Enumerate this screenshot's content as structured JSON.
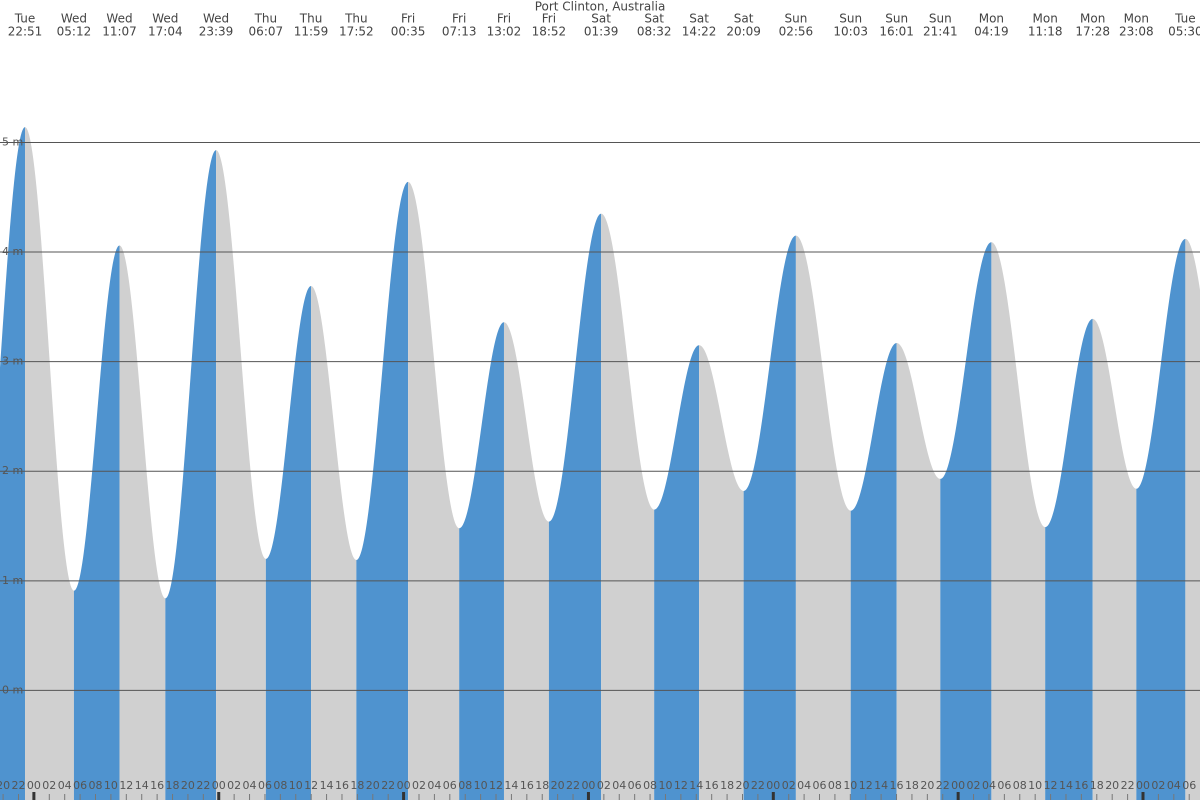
{
  "chart_data": {
    "type": "tide",
    "title": "Port Clinton, Australia",
    "days": [
      "Tue",
      "Wed",
      "Wed",
      "Wed",
      "Wed",
      "Thu",
      "Thu",
      "Thu",
      "Fri",
      "Fri",
      "Fri",
      "Fri",
      "Sat",
      "Sat",
      "Sat",
      "Sat",
      "Sun",
      "Sun",
      "Sun",
      "Sun",
      "Mon",
      "Mon",
      "Mon",
      "Mon",
      "Tue"
    ],
    "times": [
      "22:51",
      "05:12",
      "11:07",
      "17:04",
      "23:39",
      "06:07",
      "11:59",
      "17:52",
      "00:35",
      "07:13",
      "13:02",
      "18:52",
      "01:39",
      "08:32",
      "14:22",
      "20:09",
      "02:56",
      "10:03",
      "16:01",
      "21:41",
      "04:19",
      "11:18",
      "17:28",
      "23:08",
      "05:30"
    ],
    "heights": [
      5.14,
      0.91,
      4.06,
      0.84,
      4.93,
      1.2,
      3.69,
      1.19,
      4.64,
      1.48,
      3.36,
      1.54,
      4.35,
      1.65,
      3.15,
      1.82,
      4.15,
      1.64,
      3.17,
      1.93,
      4.09,
      1.49,
      3.39,
      1.84,
      4.12
    ],
    "ylim": [
      -1.0,
      6.3
    ],
    "yticks": [
      {
        "value": 0,
        "label": "0 m"
      },
      {
        "value": 1,
        "label": "1 m"
      },
      {
        "value": 2,
        "label": "2 m"
      },
      {
        "value": 3,
        "label": "3 m"
      },
      {
        "value": 4,
        "label": "4 m"
      },
      {
        "value": 5,
        "label": "5 m"
      }
    ],
    "xlim": [
      19.6,
      175.4
    ],
    "xticks": [
      {
        "value": 20,
        "label": "20"
      },
      {
        "value": 22,
        "label": "22"
      },
      {
        "value": 24,
        "label": "00"
      },
      {
        "value": 26,
        "label": "02"
      },
      {
        "value": 28,
        "label": "04"
      },
      {
        "value": 30,
        "label": "06"
      },
      {
        "value": 32,
        "label": "08"
      },
      {
        "value": 34,
        "label": "10"
      },
      {
        "value": 36,
        "label": "12"
      },
      {
        "value": 38,
        "label": "14"
      },
      {
        "value": 40,
        "label": "16"
      },
      {
        "value": 42,
        "label": "18"
      },
      {
        "value": 44,
        "label": "20"
      },
      {
        "value": 46,
        "label": "22"
      },
      {
        "value": 48,
        "label": "00"
      },
      {
        "value": 50,
        "label": "02"
      },
      {
        "value": 52,
        "label": "04"
      },
      {
        "value": 54,
        "label": "06"
      },
      {
        "value": 56,
        "label": "08"
      },
      {
        "value": 58,
        "label": "10"
      },
      {
        "value": 60,
        "label": "12"
      },
      {
        "value": 62,
        "label": "14"
      },
      {
        "value": 64,
        "label": "16"
      },
      {
        "value": 66,
        "label": "18"
      },
      {
        "value": 68,
        "label": "20"
      },
      {
        "value": 70,
        "label": "22"
      },
      {
        "value": 72,
        "label": "00"
      },
      {
        "value": 74,
        "label": "02"
      },
      {
        "value": 76,
        "label": "04"
      },
      {
        "value": 78,
        "label": "06"
      },
      {
        "value": 80,
        "label": "08"
      },
      {
        "value": 82,
        "label": "10"
      },
      {
        "value": 84,
        "label": "12"
      },
      {
        "value": 86,
        "label": "14"
      },
      {
        "value": 88,
        "label": "16"
      },
      {
        "value": 90,
        "label": "18"
      },
      {
        "value": 92,
        "label": "20"
      },
      {
        "value": 94,
        "label": "22"
      },
      {
        "value": 96,
        "label": "00"
      },
      {
        "value": 98,
        "label": "02"
      },
      {
        "value": 100,
        "label": "04"
      },
      {
        "value": 102,
        "label": "06"
      },
      {
        "value": 104,
        "label": "08"
      },
      {
        "value": 106,
        "label": "10"
      },
      {
        "value": 108,
        "label": "12"
      },
      {
        "value": 110,
        "label": "14"
      },
      {
        "value": 112,
        "label": "16"
      },
      {
        "value": 114,
        "label": "18"
      },
      {
        "value": 116,
        "label": "20"
      },
      {
        "value": 118,
        "label": "22"
      },
      {
        "value": 120,
        "label": "00"
      },
      {
        "value": 122,
        "label": "02"
      },
      {
        "value": 124,
        "label": "04"
      },
      {
        "value": 126,
        "label": "06"
      },
      {
        "value": 128,
        "label": "08"
      },
      {
        "value": 130,
        "label": "10"
      },
      {
        "value": 132,
        "label": "12"
      },
      {
        "value": 134,
        "label": "14"
      },
      {
        "value": 136,
        "label": "16"
      },
      {
        "value": 138,
        "label": "18"
      },
      {
        "value": 140,
        "label": "20"
      },
      {
        "value": 142,
        "label": "22"
      },
      {
        "value": 144,
        "label": "00"
      },
      {
        "value": 146,
        "label": "02"
      },
      {
        "value": 148,
        "label": "04"
      },
      {
        "value": 150,
        "label": "06"
      },
      {
        "value": 152,
        "label": "08"
      },
      {
        "value": 154,
        "label": "10"
      },
      {
        "value": 156,
        "label": "12"
      },
      {
        "value": 158,
        "label": "14"
      },
      {
        "value": 160,
        "label": "16"
      },
      {
        "value": 162,
        "label": "18"
      },
      {
        "value": 164,
        "label": "20"
      },
      {
        "value": 166,
        "label": "22"
      },
      {
        "value": 168,
        "label": "00"
      },
      {
        "value": 170,
        "label": "02"
      },
      {
        "value": 172,
        "label": "04"
      },
      {
        "value": 174,
        "label": "06"
      }
    ],
    "rise_color": "#4f93cf",
    "fall_color": "#d0d0d0",
    "grid": true
  }
}
